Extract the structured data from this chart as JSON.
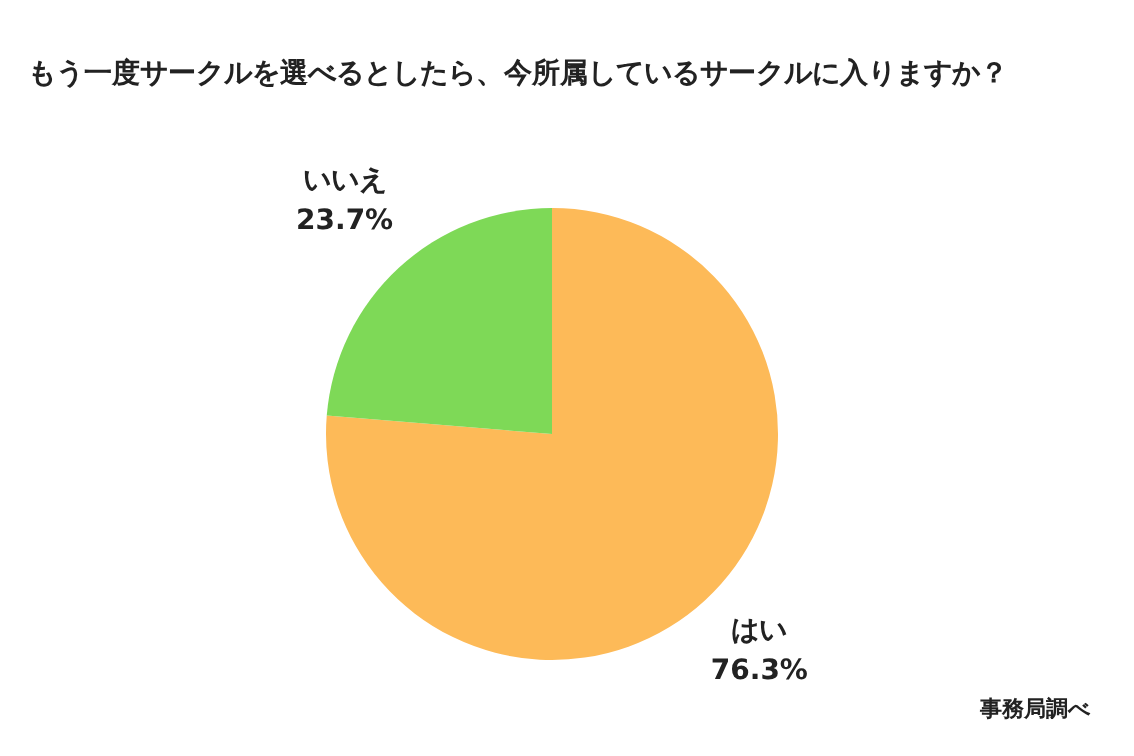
{
  "chart_data": {
    "type": "pie",
    "title": "もう一度サークルを選べるとしたら、今所属しているサークルに入りますか？",
    "categories": [
      "はい",
      "いいえ"
    ],
    "values": [
      76.3,
      23.7
    ],
    "colors": [
      "#fdba58",
      "#7ed957"
    ],
    "value_labels": [
      "76.3%",
      "23.7%"
    ],
    "legend": false,
    "annotations": [
      "事務局調べ"
    ]
  }
}
